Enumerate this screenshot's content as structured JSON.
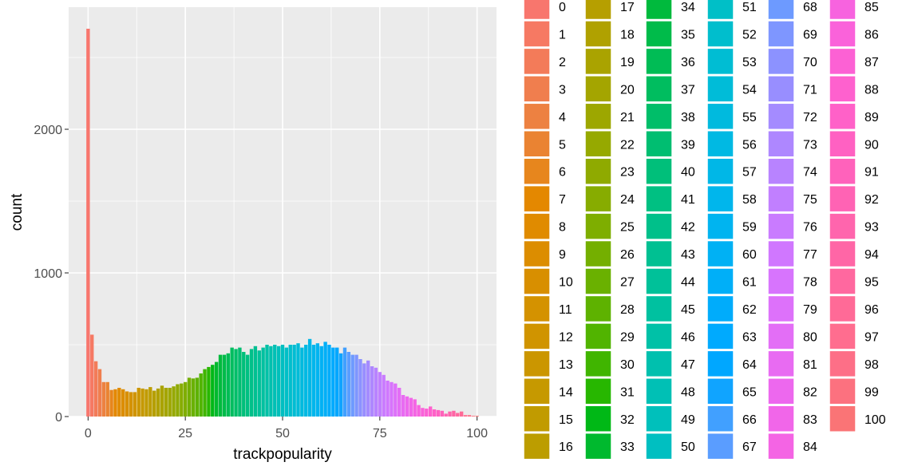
{
  "chart_data": {
    "type": "bar",
    "xlabel": "trackpopularity",
    "ylabel": "count",
    "xlim": [
      -5,
      105
    ],
    "ylim": [
      0,
      2850
    ],
    "x_ticks": [
      0,
      25,
      50,
      75,
      100
    ],
    "y_ticks": [
      0,
      1000,
      2000
    ],
    "grid": true,
    "legend_position": "right",
    "categories": [
      0,
      1,
      2,
      3,
      4,
      5,
      6,
      7,
      8,
      9,
      10,
      11,
      12,
      13,
      14,
      15,
      16,
      17,
      18,
      19,
      20,
      21,
      22,
      23,
      24,
      25,
      26,
      27,
      28,
      29,
      30,
      31,
      32,
      33,
      34,
      35,
      36,
      37,
      38,
      39,
      40,
      41,
      42,
      43,
      44,
      45,
      46,
      47,
      48,
      49,
      50,
      51,
      52,
      53,
      54,
      55,
      56,
      57,
      58,
      59,
      60,
      61,
      62,
      63,
      64,
      65,
      66,
      67,
      68,
      69,
      70,
      71,
      72,
      73,
      74,
      75,
      76,
      77,
      78,
      79,
      80,
      81,
      82,
      83,
      84,
      85,
      86,
      87,
      88,
      89,
      90,
      91,
      92,
      93,
      94,
      95,
      96,
      97,
      98,
      99,
      100
    ],
    "values": [
      2700,
      570,
      385,
      330,
      240,
      240,
      185,
      190,
      200,
      190,
      175,
      170,
      170,
      200,
      195,
      190,
      205,
      180,
      195,
      215,
      200,
      200,
      210,
      225,
      230,
      240,
      270,
      265,
      270,
      300,
      330,
      345,
      360,
      380,
      430,
      430,
      440,
      480,
      470,
      480,
      450,
      430,
      470,
      490,
      460,
      480,
      500,
      490,
      500,
      490,
      500,
      480,
      500,
      500,
      510,
      480,
      500,
      540,
      500,
      510,
      490,
      520,
      500,
      480,
      480,
      440,
      480,
      450,
      430,
      430,
      400,
      370,
      390,
      350,
      340,
      310,
      290,
      250,
      240,
      230,
      200,
      150,
      140,
      130,
      120,
      80,
      60,
      55,
      70,
      50,
      45,
      40,
      20,
      35,
      40,
      25,
      35,
      10,
      10,
      5,
      5
    ],
    "legend": {
      "title": "",
      "entries": [
        "0",
        "1",
        "2",
        "3",
        "4",
        "5",
        "6",
        "7",
        "8",
        "9",
        "10",
        "11",
        "12",
        "13",
        "14",
        "15",
        "16",
        "17",
        "18",
        "19",
        "20",
        "21",
        "22",
        "23",
        "24",
        "25",
        "26",
        "27",
        "28",
        "29",
        "30",
        "31",
        "32",
        "33",
        "34",
        "35",
        "36",
        "37",
        "38",
        "39",
        "40",
        "41",
        "42",
        "43",
        "44",
        "45",
        "46",
        "47",
        "48",
        "49",
        "50",
        "51",
        "52",
        "53",
        "54",
        "55",
        "56",
        "57",
        "58",
        "59",
        "60",
        "61",
        "62",
        "63",
        "64",
        "65",
        "66",
        "67",
        "68",
        "69",
        "70",
        "71",
        "72",
        "73",
        "74",
        "75",
        "76",
        "77",
        "78",
        "79",
        "80",
        "81",
        "82",
        "83",
        "84",
        "85",
        "86",
        "87",
        "88",
        "89",
        "90",
        "91",
        "92",
        "93",
        "94",
        "95",
        "96",
        "97",
        "98",
        "99",
        "100"
      ]
    }
  },
  "colors": {
    "panel_background": "#ebebeb",
    "grid_major": "#ffffff",
    "palette": "ggplot2 default hue scale (101 levels)"
  }
}
